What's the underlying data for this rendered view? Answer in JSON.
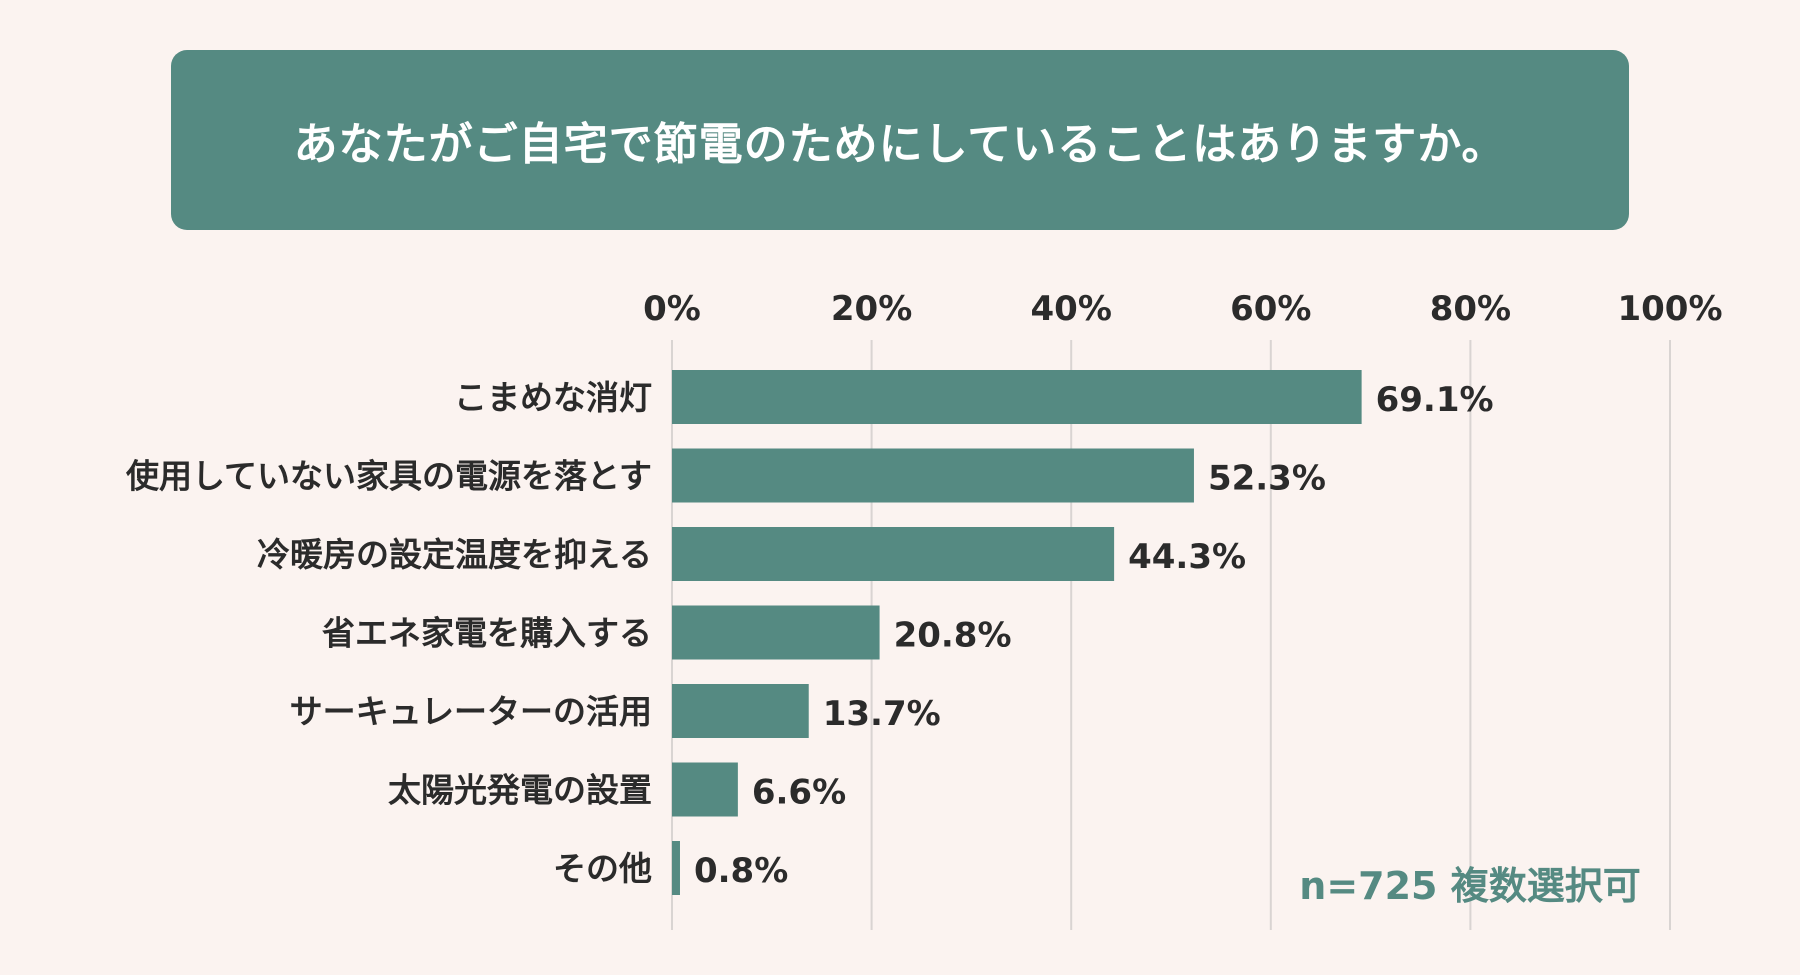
{
  "title": "あなたがご自宅で節電のためにしていることはありますか。",
  "note": "n=725 複数選択可",
  "colors": {
    "background": "#fbf3f0",
    "bar": "#558a82",
    "banner": "#558a82",
    "text": "#2b2b2b",
    "grid": "#d9d4d2",
    "note": "#558a82"
  },
  "chart_data": {
    "type": "bar",
    "orientation": "horizontal",
    "categories": [
      "こまめな消灯",
      "使用していない家具の電源を落とす",
      "冷暖房の設定温度を抑える",
      "省エネ家電を購入する",
      "サーキュレーターの活用",
      "太陽光発電の設置",
      "その他"
    ],
    "values": [
      69.1,
      52.3,
      44.3,
      20.8,
      13.7,
      6.6,
      0.8
    ],
    "value_labels": [
      "69.1%",
      "52.3%",
      "44.3%",
      "20.8%",
      "13.7%",
      "6.6%",
      "0.8%"
    ],
    "x_ticks": [
      0,
      20,
      40,
      60,
      80,
      100
    ],
    "x_tick_labels": [
      "0%",
      "20%",
      "40%",
      "60%",
      "80%",
      "100%"
    ],
    "xlim": [
      0,
      100
    ],
    "axis_position": "top",
    "grid": true,
    "legend": "none"
  }
}
